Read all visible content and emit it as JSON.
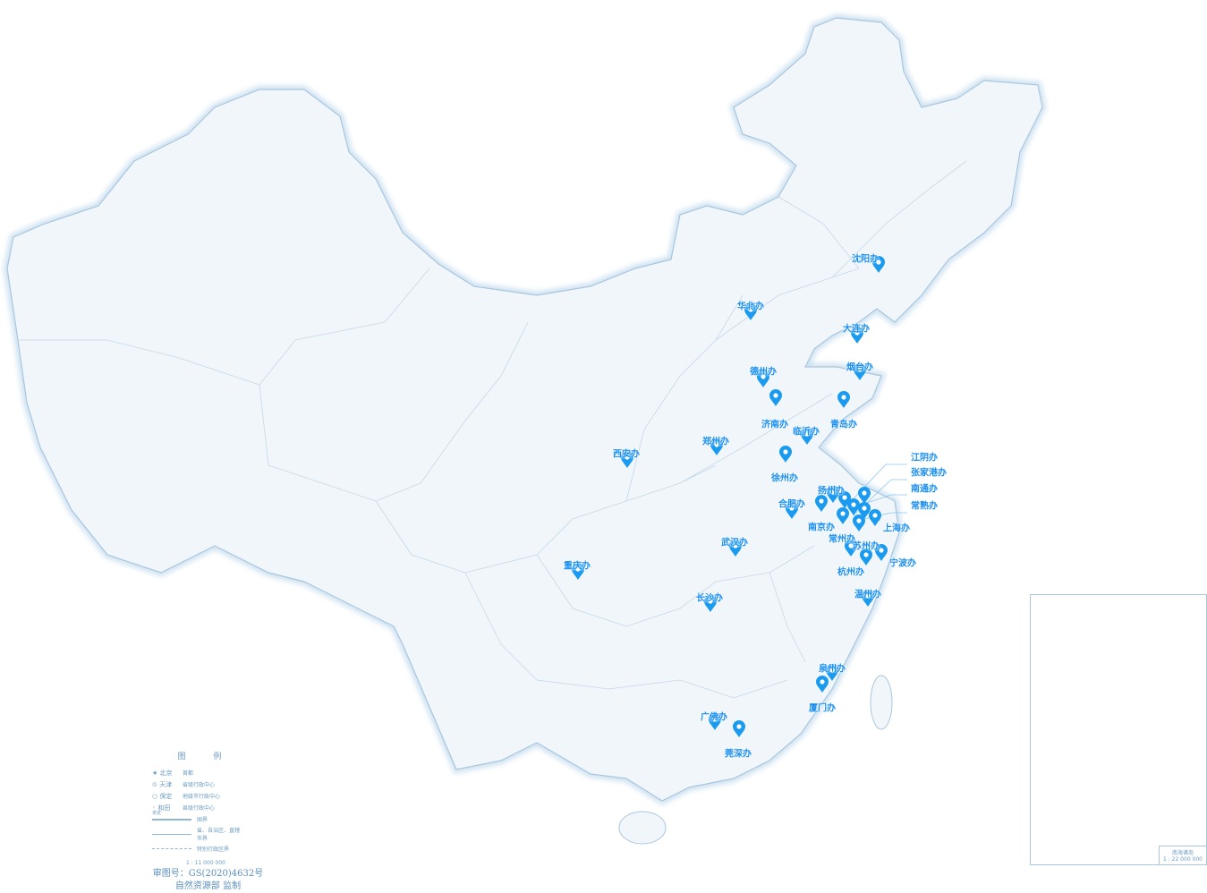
{
  "map": {
    "offices": [
      {
        "label": "沈阳办"
      },
      {
        "label": "华北办"
      },
      {
        "label": "大连办"
      },
      {
        "label": "烟台办"
      },
      {
        "label": "德州办"
      },
      {
        "label": "济南办"
      },
      {
        "label": "青岛办"
      },
      {
        "label": "临沂办"
      },
      {
        "label": "郑州办"
      },
      {
        "label": "西安办"
      },
      {
        "label": "徐州办"
      },
      {
        "label": "扬州办"
      },
      {
        "label": "合肥办"
      },
      {
        "label": "南京办"
      },
      {
        "label": "常州办"
      },
      {
        "label": "苏州办"
      },
      {
        "label": "上海办"
      },
      {
        "label": "江阴办"
      },
      {
        "label": "张家港办"
      },
      {
        "label": "南通办"
      },
      {
        "label": "常熟办"
      },
      {
        "label": "武汉办"
      },
      {
        "label": "重庆办"
      },
      {
        "label": "杭州办"
      },
      {
        "label": "宁波办"
      },
      {
        "label": "长沙办"
      },
      {
        "label": "温州办"
      },
      {
        "label": "泉州办"
      },
      {
        "label": "厦门办"
      },
      {
        "label": "广佛办"
      },
      {
        "label": "莞深办"
      }
    ],
    "marker_color": "#1a9bf0",
    "land_color": "#f1f6fb",
    "border_color": "#a9c6df"
  },
  "legend": {
    "title": "图 例",
    "items": [
      {
        "symbol": "★ 北京",
        "desc": "首都"
      },
      {
        "symbol": "⊙ 天津",
        "desc": "省级行政中心"
      },
      {
        "symbol": "○ 保定",
        "desc": "地级市行政中心"
      },
      {
        "symbol": "◦ 和田",
        "desc": "县级行政中心"
      },
      {
        "symbol": "",
        "desc": "国界"
      },
      {
        "symbol": "",
        "desc": "省、自治区、直辖市界"
      },
      {
        "symbol": "",
        "desc": "特别行政区界"
      }
    ],
    "undetermined": "未定",
    "scale": "1 : 11 000 000"
  },
  "approval": {
    "number": "审图号：GS(2020)4632号",
    "authority": "自然资源部 监制"
  },
  "inset": {
    "title": "南海诸岛",
    "scale": "1 : 22 000 000"
  }
}
